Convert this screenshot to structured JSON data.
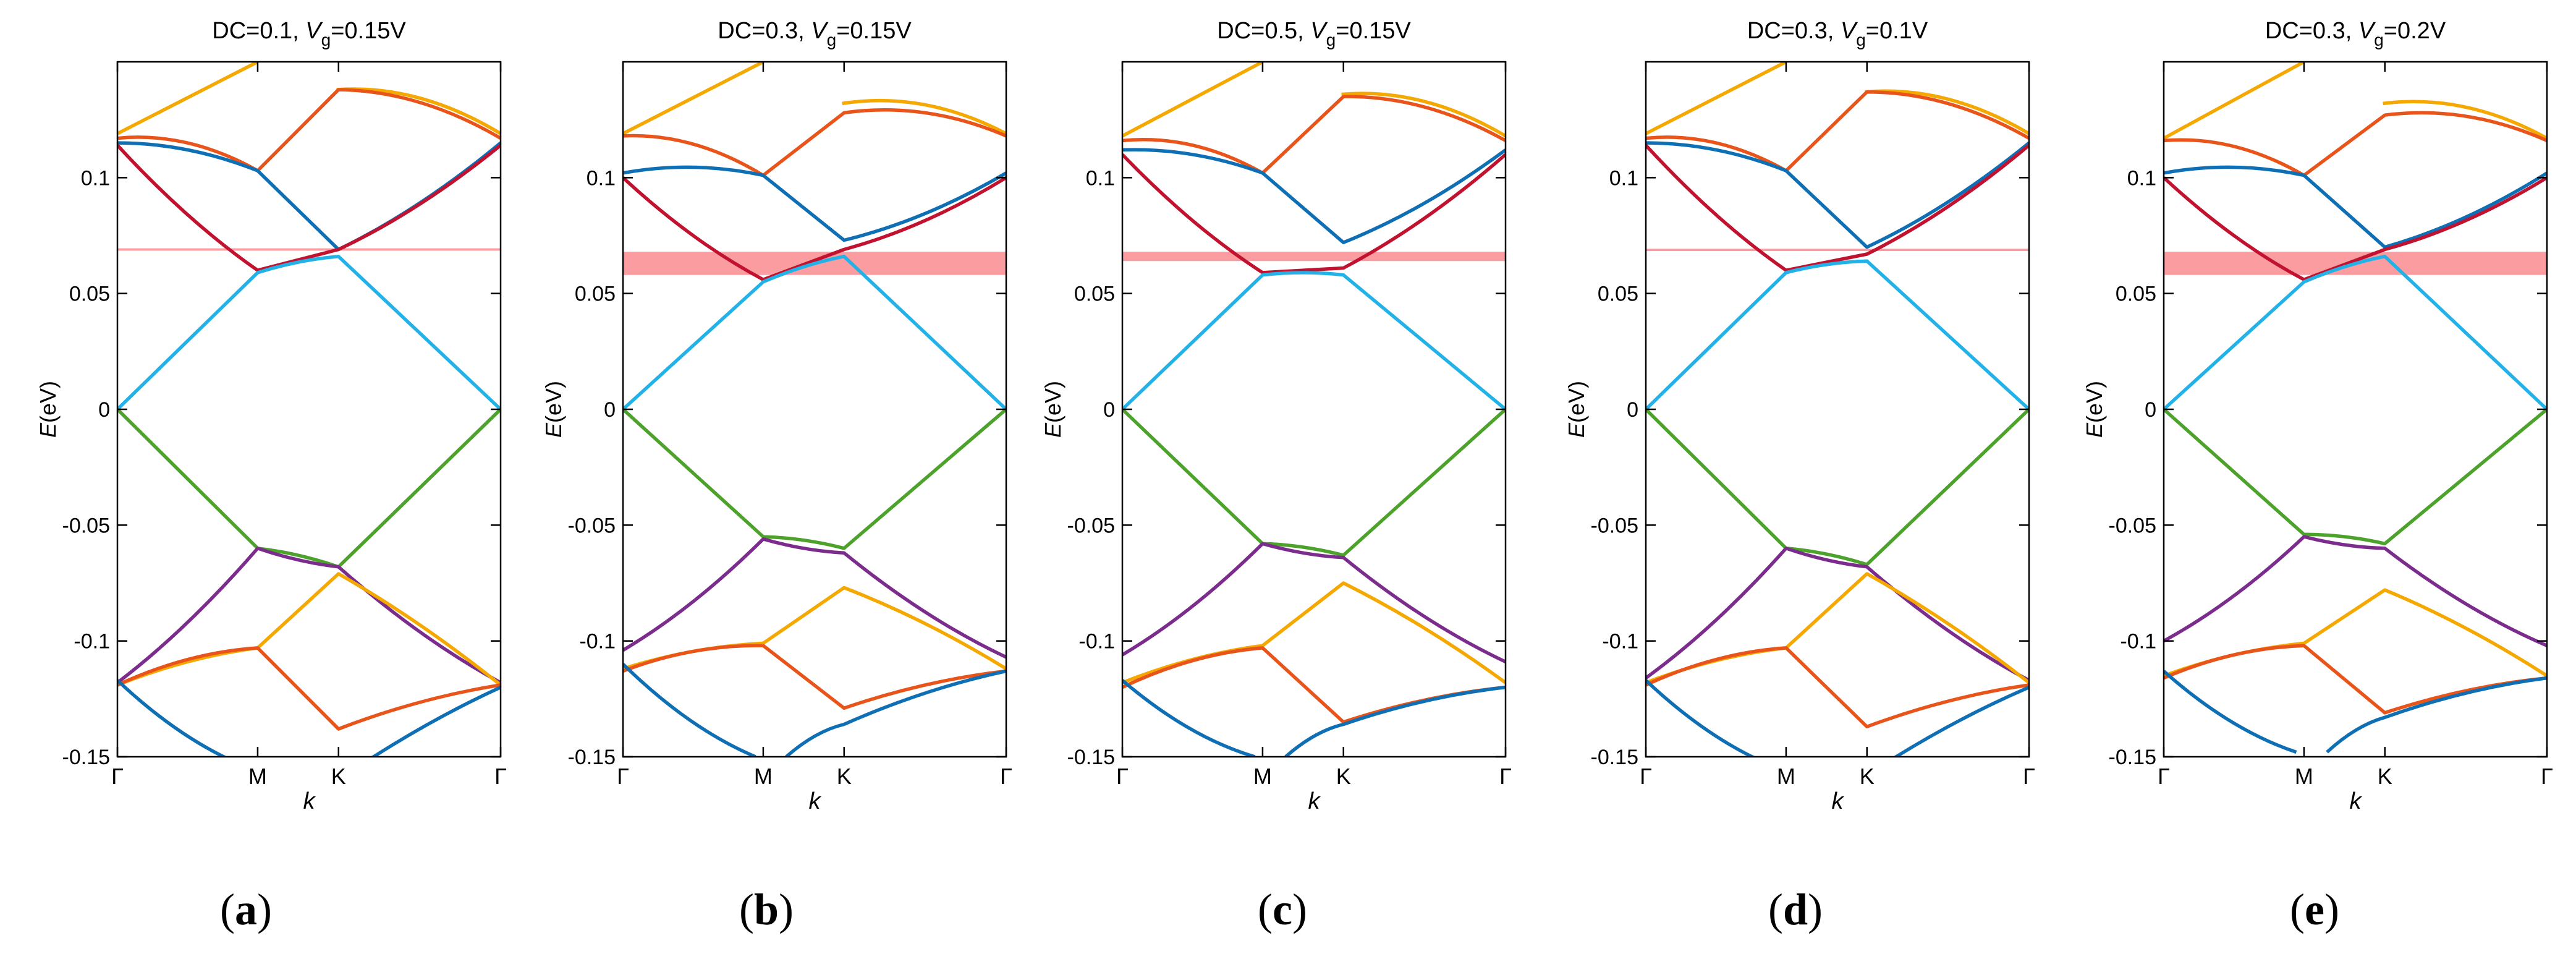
{
  "chart_data": [
    {
      "type": "line",
      "panel": "a",
      "title": {
        "prefix": "DC=0.1, ",
        "var": "V",
        "sub": "g",
        "suffix": "=0.15V"
      },
      "xlabel": "k",
      "ylabel_var": "E",
      "ylabel_unit": "(eV)",
      "xticks": [
        {
          "x": 0,
          "label": "Γ"
        },
        {
          "x": 0.366,
          "label": "M"
        },
        {
          "x": 0.577,
          "label": "K"
        },
        {
          "x": 1,
          "label": "Γ"
        }
      ],
      "yticks": [
        -0.15,
        -0.1,
        -0.05,
        0,
        0.05,
        0.1
      ],
      "ylim": [
        -0.15,
        0.15
      ],
      "xlim": [
        0,
        1
      ],
      "band_gap": [
        0.0685,
        0.0695
      ],
      "nodes": {
        "gamma_high": [
          0.119,
          0.117,
          0.115,
          0.114
        ],
        "M_high": [
          0.15,
          0.103,
          0.103,
          0.06
        ],
        "K_high": [
          0.138,
          0.138,
          0.069,
          0.069
        ],
        "M_low": [
          -0.06,
          -0.06,
          -0.103,
          -0.103,
          -0.155
        ],
        "K_low": [
          -0.068,
          -0.068,
          -0.071,
          -0.138,
          -0.16
        ],
        "gamma_low": [
          -0.118,
          -0.118,
          -0.119,
          -0.119,
          -0.12
        ]
      }
    },
    {
      "type": "line",
      "panel": "b",
      "title": {
        "prefix": "DC=0.3, ",
        "var": "V",
        "sub": "g",
        "suffix": "=0.15V"
      },
      "xlabel": "k",
      "ylabel_var": "E",
      "ylabel_unit": "(eV)",
      "xticks": [
        {
          "x": 0,
          "label": "Γ"
        },
        {
          "x": 0.366,
          "label": "M"
        },
        {
          "x": 0.577,
          "label": "K"
        },
        {
          "x": 1,
          "label": "Γ"
        }
      ],
      "yticks": [
        -0.15,
        -0.1,
        -0.05,
        0,
        0.05,
        0.1
      ],
      "ylim": [
        -0.15,
        0.15
      ],
      "xlim": [
        0,
        1
      ],
      "band_gap": [
        0.058,
        0.068
      ],
      "nodes": {
        "gamma_high": [
          0.119,
          0.118,
          0.102,
          0.1
        ],
        "M_high": [
          0.15,
          0.101,
          0.101,
          0.056
        ],
        "K_high": [
          0.132,
          0.128,
          0.073,
          0.069
        ],
        "M_low": [
          -0.055,
          -0.056,
          -0.101,
          -0.102,
          -0.15
        ],
        "K_low": [
          -0.06,
          -0.062,
          -0.077,
          -0.129,
          -0.136
        ],
        "gamma_low": [
          -0.104,
          -0.107,
          -0.112,
          -0.113,
          -0.113
        ]
      }
    },
    {
      "type": "line",
      "panel": "c",
      "title": {
        "prefix": "DC=0.5, ",
        "var": "V",
        "sub": "g",
        "suffix": "=0.15V"
      },
      "xlabel": "k",
      "ylabel_var": "E",
      "ylabel_unit": "(eV)",
      "xticks": [
        {
          "x": 0,
          "label": "Γ"
        },
        {
          "x": 0.366,
          "label": "M"
        },
        {
          "x": 0.577,
          "label": "K"
        },
        {
          "x": 1,
          "label": "Γ"
        }
      ],
      "yticks": [
        -0.15,
        -0.1,
        -0.05,
        0,
        0.05,
        0.1
      ],
      "ylim": [
        -0.15,
        0.15
      ],
      "xlim": [
        0,
        1
      ],
      "band_gap": [
        0.064,
        0.068
      ],
      "nodes": {
        "gamma_high": [
          0.118,
          0.116,
          0.112,
          0.11
        ],
        "M_high": [
          0.15,
          0.102,
          0.102,
          0.059
        ],
        "K_high": [
          0.136,
          0.135,
          0.072,
          0.061
        ],
        "M_low": [
          -0.058,
          -0.058,
          -0.102,
          -0.103,
          -0.15
        ],
        "K_low": [
          -0.063,
          -0.064,
          -0.075,
          -0.135,
          -0.136
        ],
        "gamma_low": [
          -0.106,
          -0.109,
          -0.118,
          -0.12,
          -0.12
        ]
      }
    },
    {
      "type": "line",
      "panel": "d",
      "title": {
        "prefix": "DC=0.3, ",
        "var": "V",
        "sub": "g",
        "suffix": "=0.1V"
      },
      "xlabel": "k",
      "ylabel_var": "E",
      "ylabel_unit": "(eV)",
      "xticks": [
        {
          "x": 0,
          "label": "Γ"
        },
        {
          "x": 0.366,
          "label": "M"
        },
        {
          "x": 0.577,
          "label": "K"
        },
        {
          "x": 1,
          "label": "Γ"
        }
      ],
      "yticks": [
        -0.15,
        -0.1,
        -0.05,
        0,
        0.05,
        0.1
      ],
      "ylim": [
        -0.15,
        0.15
      ],
      "xlim": [
        0,
        1
      ],
      "band_gap": [
        0.0683,
        0.0693
      ],
      "nodes": {
        "gamma_high": [
          0.119,
          0.117,
          0.115,
          0.114
        ],
        "M_high": [
          0.15,
          0.103,
          0.103,
          0.06
        ],
        "K_high": [
          0.137,
          0.137,
          0.07,
          0.067
        ],
        "M_low": [
          -0.06,
          -0.06,
          -0.103,
          -0.103,
          -0.155
        ],
        "K_low": [
          -0.067,
          -0.068,
          -0.071,
          -0.137,
          -0.158
        ],
        "gamma_low": [
          -0.116,
          -0.117,
          -0.118,
          -0.119,
          -0.12
        ]
      }
    },
    {
      "type": "line",
      "panel": "e",
      "title": {
        "prefix": "DC=0.3, ",
        "var": "V",
        "sub": "g",
        "suffix": "=0.2V"
      },
      "xlabel": "k",
      "ylabel_var": "E",
      "ylabel_unit": "(eV)",
      "xticks": [
        {
          "x": 0,
          "label": "Γ"
        },
        {
          "x": 0.366,
          "label": "M"
        },
        {
          "x": 0.577,
          "label": "K"
        },
        {
          "x": 1,
          "label": "Γ"
        }
      ],
      "yticks": [
        -0.15,
        -0.1,
        -0.05,
        0,
        0.05,
        0.1
      ],
      "ylim": [
        -0.15,
        0.15
      ],
      "xlim": [
        0,
        1
      ],
      "band_gap": [
        0.058,
        0.068
      ],
      "nodes": {
        "gamma_high": [
          0.117,
          0.116,
          0.102,
          0.1
        ],
        "M_high": [
          0.15,
          0.101,
          0.101,
          0.056
        ],
        "K_high": [
          0.132,
          0.127,
          0.07,
          0.069
        ],
        "M_low": [
          -0.054,
          -0.055,
          -0.101,
          -0.102,
          -0.148
        ],
        "K_low": [
          -0.058,
          -0.06,
          -0.078,
          -0.131,
          -0.133
        ],
        "gamma_low": [
          -0.1,
          -0.102,
          -0.115,
          -0.116,
          -0.116
        ]
      }
    }
  ],
  "band_colors": [
    "#f5a800",
    "#e8541a",
    "#0f6fb4",
    "#c1122f",
    "#22b2e8",
    "#4ca22a",
    "#7b2c8c"
  ],
  "gap_color": "#fa9ca0",
  "panel_labels": [
    "a",
    "b",
    "c",
    "d",
    "e"
  ]
}
